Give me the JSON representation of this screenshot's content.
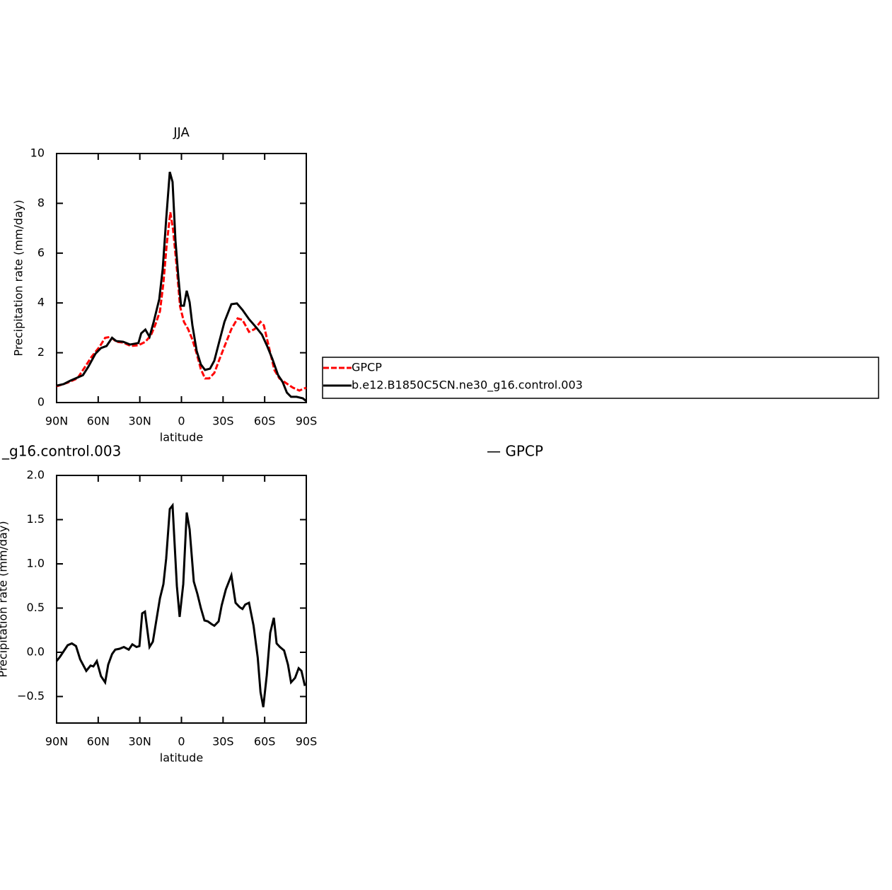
{
  "chart_data": [
    {
      "type": "line",
      "title": "JJA",
      "xlabel": "latitude",
      "ylabel": "Precipitation rate (mm/day)",
      "xlim": [
        90,
        -90
      ],
      "xticks": [
        {
          "value": 90,
          "label": "90N"
        },
        {
          "value": 60,
          "label": "60N"
        },
        {
          "value": 30,
          "label": "30N"
        },
        0,
        {
          "value": -30,
          "label": "30S"
        },
        {
          "value": -60,
          "label": "60S"
        },
        {
          "value": -90,
          "label": "90S"
        }
      ],
      "ylim": [
        0,
        10
      ],
      "yticks": [
        0,
        2,
        4,
        6,
        8,
        10
      ],
      "legend": "right",
      "series": [
        {
          "name": "GPCP",
          "color": "#ff0000",
          "dash": true,
          "x": [
            90,
            82,
            75,
            70,
            65,
            59,
            55,
            51,
            47,
            42,
            36.5,
            31,
            26,
            22,
            19,
            15.5,
            13,
            10.6,
            8,
            6,
            3.3,
            1,
            -1.8,
            -4.8,
            -7.9,
            -11,
            -14,
            -17,
            -20,
            -23.7,
            -27,
            -32,
            -36,
            -40.5,
            -44,
            -48.7,
            -52.8,
            -57,
            -59.4,
            -63,
            -67,
            -70.6,
            -75.7,
            -80.3,
            -85,
            -90
          ],
          "values": [
            0.65,
            0.8,
            0.97,
            1.39,
            1.82,
            2.24,
            2.6,
            2.64,
            2.44,
            2.41,
            2.27,
            2.3,
            2.44,
            2.7,
            3.1,
            3.66,
            4.8,
            6.36,
            7.64,
            6.93,
            5.37,
            3.86,
            3.24,
            2.95,
            2.53,
            1.96,
            1.34,
            0.97,
            0.97,
            1.19,
            1.68,
            2.39,
            2.95,
            3.38,
            3.32,
            2.84,
            2.95,
            3.24,
            3.1,
            2.24,
            1.31,
            0.97,
            0.77,
            0.6,
            0.48,
            0.6
          ]
        },
        {
          "name": "b.e12.B1850C5CN.ne30_g16.control.003",
          "color": "#000000",
          "dash": false,
          "x": [
            90,
            85,
            80,
            75,
            71,
            67,
            62,
            58,
            54,
            50,
            47,
            42,
            37,
            34,
            31,
            29,
            26,
            23,
            20,
            16,
            13.5,
            11,
            8.4,
            6.4,
            4.3,
            2.3,
            0.3,
            -1.8,
            -3.8,
            -5.9,
            -7.9,
            -11,
            -14,
            -17,
            -20.6,
            -23.7,
            -27,
            -31,
            -36,
            -40,
            -44,
            -48.7,
            -54,
            -58,
            -62,
            -65.5,
            -69.6,
            -73,
            -76,
            -79,
            -83,
            -87.5,
            -90
          ],
          "values": [
            0.68,
            0.74,
            0.88,
            1.0,
            1.1,
            1.45,
            1.96,
            2.19,
            2.27,
            2.6,
            2.47,
            2.44,
            2.33,
            2.36,
            2.39,
            2.78,
            2.93,
            2.64,
            3.24,
            4.15,
            5.37,
            7.36,
            9.26,
            8.86,
            6.5,
            5.09,
            3.89,
            3.89,
            4.49,
            4.03,
            3.1,
            2.07,
            1.53,
            1.31,
            1.36,
            1.68,
            2.39,
            3.24,
            3.95,
            3.98,
            3.72,
            3.35,
            3.01,
            2.73,
            2.24,
            1.76,
            1.11,
            0.82,
            0.4,
            0.23,
            0.23,
            0.17,
            0.06
          ]
        }
      ]
    },
    {
      "type": "line",
      "title_parts": [
        "_g16.control.003",
        "— GPCP"
      ],
      "xlabel": "latitude",
      "ylabel": "Precipitation rate (mm/day)",
      "xlim": [
        90,
        -90
      ],
      "xticks": [
        {
          "value": 90,
          "label": "90N"
        },
        {
          "value": 60,
          "label": "60N"
        },
        {
          "value": 30,
          "label": "30N"
        },
        0,
        {
          "value": -30,
          "label": "30S"
        },
        {
          "value": -60,
          "label": "60S"
        },
        {
          "value": -90,
          "label": "90S"
        }
      ],
      "ylim": [
        -0.8,
        2.0
      ],
      "yticks": [
        {
          "value": -0.5,
          "label": "−0.5"
        },
        {
          "value": 0,
          "label": "0.0"
        },
        {
          "value": 0.5,
          "label": "0.5"
        },
        {
          "value": 1,
          "label": "1.0"
        },
        {
          "value": 1.5,
          "label": "1.5"
        },
        {
          "value": 2,
          "label": "2.0"
        }
      ],
      "series": [
        {
          "color": "#000000",
          "dash": false,
          "x": [
            90,
            87.5,
            82,
            79,
            76,
            73,
            68.6,
            65.5,
            63.5,
            61,
            58,
            55,
            52.8,
            50,
            47.7,
            44.6,
            41.5,
            38,
            35.4,
            32.4,
            30.3,
            28.3,
            26.3,
            23,
            20.6,
            18,
            15.5,
            13,
            11,
            8.4,
            6.4,
            3.3,
            1.3,
            -1.3,
            -3.8,
            -5.9,
            -8.9,
            -11.5,
            -14,
            -16.6,
            -19,
            -21.6,
            -23.7,
            -26.8,
            -29,
            -32,
            -36,
            -39,
            -42,
            -44,
            -46,
            -48.7,
            -52,
            -55,
            -57,
            -59,
            -61.5,
            -64,
            -66.6,
            -68.6,
            -71,
            -74,
            -76.8,
            -79,
            -81.9,
            -84.5,
            -86.5,
            -89
          ],
          "values": [
            -0.1,
            -0.05,
            0.08,
            0.1,
            0.07,
            -0.08,
            -0.21,
            -0.15,
            -0.16,
            -0.1,
            -0.27,
            -0.34,
            -0.14,
            -0.02,
            0.03,
            0.04,
            0.06,
            0.03,
            0.09,
            0.06,
            0.07,
            0.44,
            0.46,
            0.06,
            0.12,
            0.37,
            0.61,
            0.77,
            1.06,
            1.62,
            1.66,
            0.75,
            0.4,
            0.77,
            1.58,
            1.39,
            0.8,
            0.66,
            0.5,
            0.36,
            0.35,
            0.32,
            0.3,
            0.35,
            0.53,
            0.71,
            0.87,
            0.56,
            0.51,
            0.49,
            0.54,
            0.56,
            0.3,
            -0.06,
            -0.45,
            -0.62,
            -0.26,
            0.22,
            0.39,
            0.1,
            0.06,
            0.02,
            -0.14,
            -0.34,
            -0.29,
            -0.18,
            -0.21,
            -0.38
          ]
        }
      ]
    }
  ]
}
